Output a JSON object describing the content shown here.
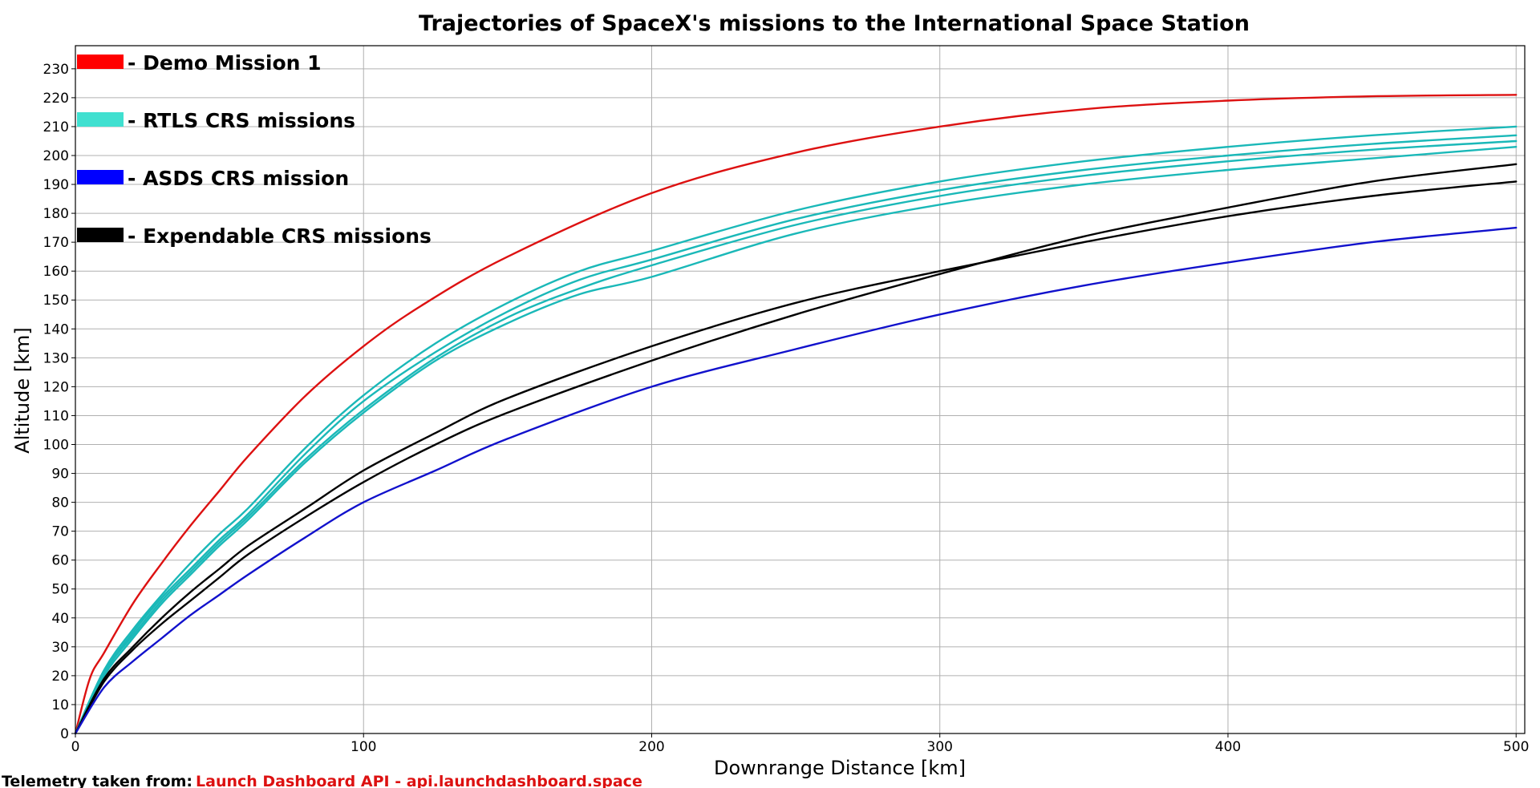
{
  "chart_data": {
    "type": "line",
    "title": "Trajectories of SpaceX's missions to the International Space Station",
    "xlabel": "Downrange Distance [km]",
    "ylabel": "Altitude [km]",
    "xlim": [
      0,
      503
    ],
    "ylim": [
      0,
      238
    ],
    "xticks": [
      0,
      100,
      200,
      300,
      400,
      500
    ],
    "yticks": [
      0,
      10,
      20,
      30,
      40,
      50,
      60,
      70,
      80,
      90,
      100,
      110,
      120,
      130,
      140,
      150,
      160,
      170,
      180,
      190,
      200,
      210,
      220,
      230
    ],
    "grid": true,
    "legend_placement": "top-left",
    "legend": [
      {
        "label": "- Demo Mission 1",
        "color": "#ff0000"
      },
      {
        "label": "- RTLS CRS missions",
        "color": "#40e0d0"
      },
      {
        "label": "- ASDS CRS mission",
        "color": "#0000ff"
      },
      {
        "label": "- Expendable CRS missions",
        "color": "#000000"
      }
    ],
    "series": [
      {
        "group": "Demo Mission 1",
        "color": "#dd1111",
        "x": [
          0,
          5,
          10,
          20,
          30,
          40,
          50,
          60,
          80,
          100,
          120,
          150,
          200,
          250,
          300,
          350,
          400,
          450,
          500
        ],
        "y": [
          0,
          19,
          28,
          45,
          59,
          72,
          84,
          96,
          117,
          134,
          148,
          165,
          187,
          201,
          210,
          216,
          219,
          220.5,
          221
        ]
      },
      {
        "group": "RTLS CRS missions",
        "color": "#1ab8b8",
        "x": [
          0,
          10,
          20,
          30,
          40,
          50,
          60,
          80,
          100,
          125,
          150,
          175,
          200,
          250,
          300,
          350,
          400,
          450,
          500
        ],
        "y": [
          0,
          22,
          36,
          48,
          59,
          69,
          78,
          99,
          117,
          135,
          149,
          160,
          167,
          181,
          191,
          198,
          203,
          207,
          210
        ]
      },
      {
        "group": "RTLS CRS missions",
        "color": "#1ab8b8",
        "x": [
          0,
          10,
          20,
          30,
          40,
          50,
          60,
          80,
          100,
          125,
          150,
          175,
          200,
          250,
          300,
          350,
          400,
          450,
          500
        ],
        "y": [
          0,
          21,
          35,
          47,
          57,
          67,
          76,
          97,
          115,
          132,
          146,
          157,
          164,
          178,
          188,
          195,
          200,
          204,
          207
        ]
      },
      {
        "group": "RTLS CRS missions",
        "color": "#1ab8b8",
        "x": [
          0,
          10,
          20,
          30,
          40,
          50,
          60,
          80,
          100,
          125,
          150,
          175,
          200,
          250,
          300,
          350,
          400,
          450,
          500
        ],
        "y": [
          0,
          21,
          34,
          46,
          56,
          66,
          75,
          95,
          112,
          130,
          144,
          154,
          162,
          176,
          186,
          193,
          198,
          202,
          205
        ]
      },
      {
        "group": "RTLS CRS missions",
        "color": "#1ab8b8",
        "x": [
          0,
          10,
          20,
          30,
          40,
          50,
          60,
          80,
          100,
          125,
          150,
          175,
          200,
          250,
          300,
          350,
          400,
          450,
          500
        ],
        "y": [
          0,
          20,
          33,
          45,
          55,
          65,
          74,
          94,
          111,
          129,
          142,
          152,
          158,
          173,
          183,
          190,
          195,
          199,
          203
        ]
      },
      {
        "group": "Expendable CRS missions",
        "color": "#000000",
        "x": [
          0,
          10,
          20,
          30,
          40,
          50,
          60,
          80,
          100,
          125,
          150,
          200,
          250,
          300,
          350,
          400,
          450,
          500
        ],
        "y": [
          0,
          19,
          30,
          40,
          49,
          57,
          65,
          78,
          91,
          104,
          116,
          134,
          149,
          160,
          170,
          179,
          186,
          191
        ]
      },
      {
        "group": "Expendable CRS missions",
        "color": "#000000",
        "x": [
          0,
          10,
          20,
          30,
          40,
          50,
          60,
          80,
          100,
          125,
          150,
          200,
          250,
          300,
          350,
          400,
          450,
          500
        ],
        "y": [
          0,
          18,
          29,
          38,
          46,
          54,
          62,
          75,
          87,
          100,
          111,
          129,
          145,
          159,
          172,
          182,
          191,
          197
        ]
      },
      {
        "group": "ASDS CRS mission",
        "color": "#1111cc",
        "x": [
          0,
          10,
          20,
          30,
          40,
          50,
          60,
          80,
          100,
          125,
          150,
          200,
          250,
          300,
          350,
          400,
          450,
          500
        ],
        "y": [
          0,
          16,
          25,
          33,
          41,
          48,
          55,
          68,
          80,
          91,
          102,
          120,
          133,
          145,
          155,
          163,
          170,
          175
        ]
      }
    ]
  },
  "footer": {
    "label": "Telemetry taken from:",
    "source": "Launch Dashboard API - api.launchdashboard.space",
    "source_color": "#dd1111"
  }
}
